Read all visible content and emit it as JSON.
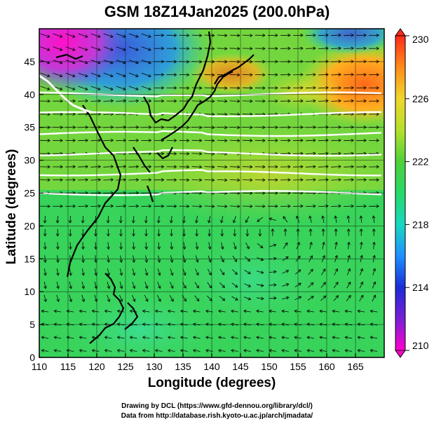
{
  "title": "GSM 18Z14Jan2025 (200.0hPa)",
  "credits": {
    "line1": "Drawing by DCL (https://www.gfd-dennou.org/library/dcl/)",
    "line2": "Data from http://database.rish.kyoto-u.ac.jp/arch/jmadata/"
  },
  "chart_data": {
    "type": "heatmap",
    "title": "GSM 18Z14Jan2025 (200.0hPa)",
    "xlabel": "Longitude (degrees)",
    "ylabel": "Latitude (degrees)",
    "xlim": [
      110,
      170
    ],
    "ylim": [
      0,
      50
    ],
    "x_ticks": [
      110,
      115,
      120,
      125,
      130,
      135,
      140,
      145,
      150,
      155,
      160,
      165
    ],
    "y_ticks": [
      0,
      5,
      10,
      15,
      20,
      25,
      30,
      35,
      40,
      45
    ],
    "grid": true,
    "colorbar": {
      "min": 210,
      "max": 230,
      "ticks": [
        210,
        214,
        218,
        222,
        226,
        230
      ],
      "placement": "right"
    },
    "contours": {
      "color": "#ffffff",
      "approx_latitudes": [
        25,
        28,
        31,
        34,
        37,
        40
      ]
    },
    "overlay": "wind vectors"
  }
}
